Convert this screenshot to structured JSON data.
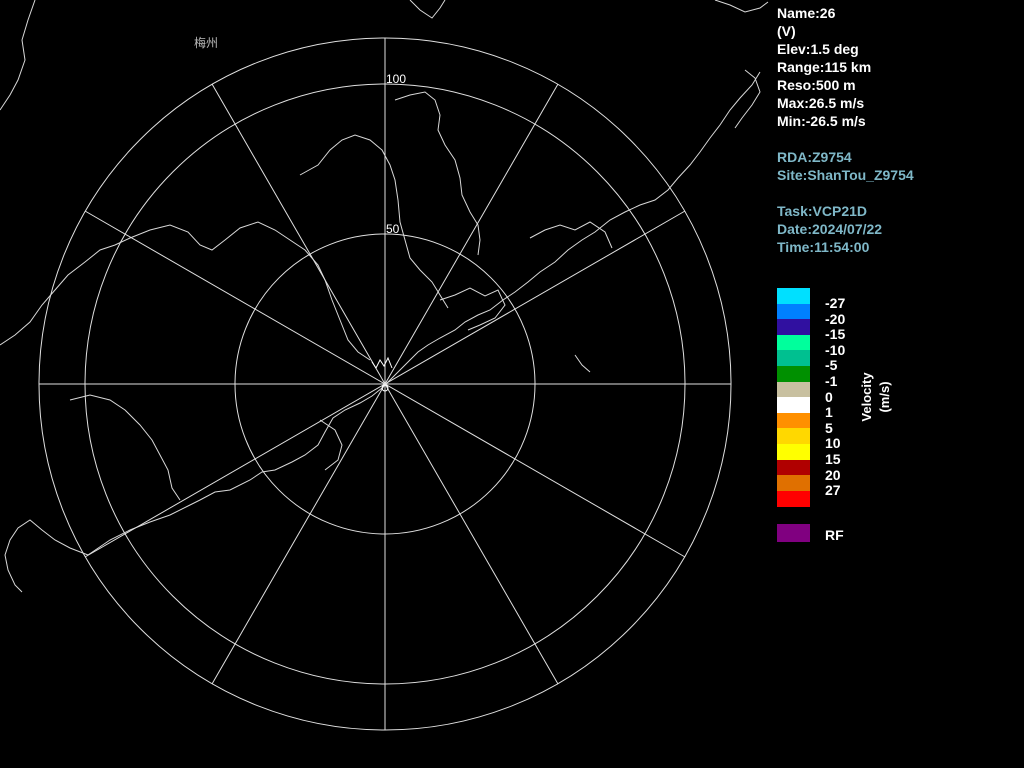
{
  "map": {
    "range_ring_labels": [
      "50",
      "100"
    ],
    "city_label": "梅州"
  },
  "product": {
    "name": "Name:26",
    "polarization": "(V)",
    "elevation": "Elev:1.5 deg",
    "range": "Range:115 km",
    "resolution": "Reso:500 m",
    "max": "Max:26.5 m/s",
    "min": "Min:-26.5 m/s"
  },
  "site": {
    "rda": "RDA:Z9754",
    "site": "Site:ShanTou_Z9754"
  },
  "task": {
    "task": "Task:VCP21D",
    "date": "Date:2024/07/22",
    "time": "Time:11:54:00"
  },
  "legend": {
    "title": "Velocity",
    "unit": "(m/s)",
    "items": [
      {
        "label": "-27",
        "color": "#00e0ff"
      },
      {
        "label": "-20",
        "color": "#0080ff"
      },
      {
        "label": "-15",
        "color": "#3010a0"
      },
      {
        "label": "-10",
        "color": "#00ff9c"
      },
      {
        "label": "-5",
        "color": "#00c090"
      },
      {
        "label": "-1",
        "color": "#009000"
      },
      {
        "label": "0",
        "color": "#c8c0a0"
      },
      {
        "label": "1",
        "color": "#ffffff"
      },
      {
        "label": "5",
        "color": "#ff9000"
      },
      {
        "label": "10",
        "color": "#ffd800"
      },
      {
        "label": "15",
        "color": "#ffff00"
      },
      {
        "label": "20",
        "color": "#b00000"
      },
      {
        "label": "27",
        "color": "#e07000"
      },
      {
        "label": "",
        "color": "#ff0000"
      }
    ],
    "rf": {
      "label": "RF",
      "color": "#800080"
    }
  }
}
